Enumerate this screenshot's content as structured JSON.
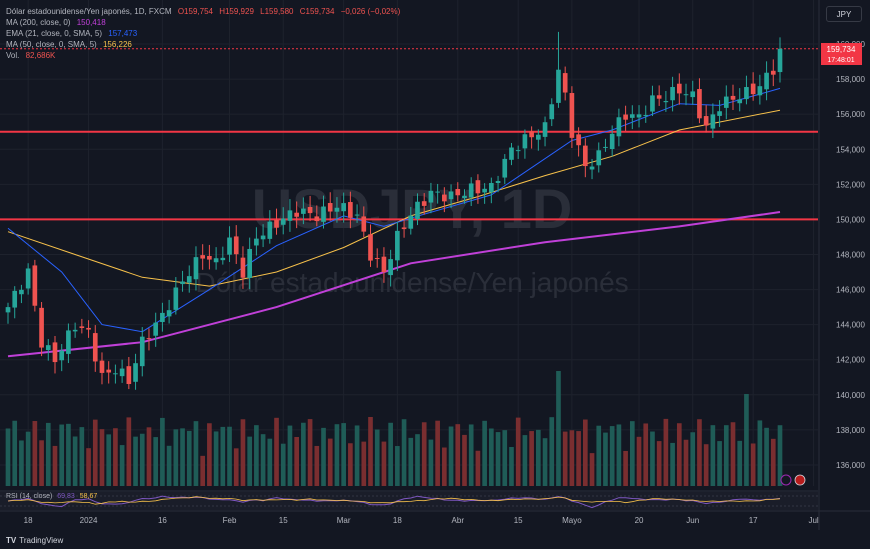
{
  "header": {
    "symbol_line": {
      "name": "Dólar estadounidense/Yen japonés, 1D, FXCM",
      "o": "O159,754",
      "h": "H159,929",
      "l": "L159,580",
      "c": "C159,734",
      "chg": "−0,026 (−0,02%)"
    },
    "indicators": [
      {
        "label": "MA (200, close, 0)",
        "value": "150,418",
        "color": "#c040d8"
      },
      {
        "label": "EMA (21, close, 0, SMA, 5)",
        "value": "157,473",
        "color": "#2962ff"
      },
      {
        "label": "MA (50, close, 0, SMA, 5)",
        "value": "156,226",
        "color": "#f7c14b"
      },
      {
        "label": "Vol.",
        "value": "82,686K",
        "color": "#ef5350"
      }
    ],
    "currency_button": "JPY"
  },
  "watermark": {
    "ticker": "USDJPY, 1D",
    "name": "Dólar estadounidense/Yen japonés"
  },
  "price_tag": {
    "price": "159,734",
    "countdown": "17:48:01"
  },
  "rsi_legend": {
    "label": "RSI (14, close)",
    "v1": "69,83",
    "v2": "58,67"
  },
  "brand": {
    "logo": "TV",
    "name": "TradingView"
  },
  "colors": {
    "up": "#26a69a",
    "down": "#ef5350",
    "hline": "#f23645",
    "ma200": "#c040d8",
    "ema21": "#2962ff",
    "ma50": "#f7c14b",
    "bg": "#131722",
    "grid": "#1e222d",
    "text": "#b2b5be"
  },
  "icons": {
    "alert": "circle-icon",
    "flag": "us-flag-icon"
  },
  "chart_data": {
    "type": "candlestick",
    "ylim": [
      134.8,
      160.8
    ],
    "y_ticks": [
      "160,000",
      "158,000",
      "156,000",
      "154,000",
      "152,000",
      "150,000",
      "148,000",
      "146,000",
      "144,000",
      "142,000",
      "140,000",
      "138,000",
      "136,000"
    ],
    "y_tick_values": [
      160,
      158,
      156,
      154,
      152,
      150,
      148,
      146,
      144,
      142,
      140,
      138,
      136
    ],
    "x_ticks": [
      "18",
      "2024",
      "16",
      "Feb",
      "15",
      "Mar",
      "18",
      "Abr",
      "15",
      "Mayo",
      "20",
      "Jun",
      "17",
      "Jul"
    ],
    "horizontal_lines": [
      155.0,
      150.0
    ],
    "anchors": [
      [
        0,
        145.0
      ],
      [
        3,
        147.0
      ],
      [
        5,
        143.0
      ],
      [
        7,
        142.0
      ],
      [
        10,
        144.0
      ],
      [
        12,
        143.5
      ],
      [
        14,
        141.0
      ],
      [
        16,
        141.5
      ],
      [
        18,
        140.8
      ],
      [
        20,
        143.0
      ],
      [
        23,
        144.5
      ],
      [
        26,
        146.5
      ],
      [
        29,
        148.0
      ],
      [
        31,
        147.5
      ],
      [
        33,
        148.8
      ],
      [
        35,
        147.0
      ],
      [
        37,
        149.0
      ],
      [
        40,
        149.8
      ],
      [
        43,
        150.5
      ],
      [
        46,
        150.2
      ],
      [
        49,
        150.8
      ],
      [
        52,
        150.2
      ],
      [
        54,
        148.0
      ],
      [
        56,
        147.0
      ],
      [
        58,
        149.0
      ],
      [
        60,
        150.3
      ],
      [
        63,
        151.5
      ],
      [
        66,
        151.3
      ],
      [
        69,
        151.7
      ],
      [
        72,
        151.8
      ],
      [
        75,
        154.0
      ],
      [
        78,
        154.8
      ],
      [
        80,
        155.2
      ],
      [
        82,
        158.5
      ],
      [
        83,
        157.0
      ],
      [
        84,
        155.0
      ],
      [
        86,
        153.0
      ],
      [
        88,
        153.6
      ],
      [
        90,
        155.0
      ],
      [
        92,
        156.0
      ],
      [
        94,
        155.8
      ],
      [
        96,
        156.8
      ],
      [
        98,
        157.0
      ],
      [
        100,
        157.4
      ],
      [
        102,
        157.0
      ],
      [
        104,
        155.2
      ],
      [
        106,
        156.5
      ],
      [
        108,
        156.9
      ],
      [
        110,
        157.2
      ],
      [
        112,
        157.6
      ],
      [
        114,
        158.6
      ],
      [
        115,
        159.73
      ]
    ],
    "ma200": [
      [
        0,
        142.2
      ],
      [
        20,
        143.0
      ],
      [
        40,
        145.0
      ],
      [
        60,
        147.5
      ],
      [
        80,
        148.7
      ],
      [
        100,
        149.6
      ],
      [
        115,
        150.42
      ]
    ],
    "ema21": [
      [
        0,
        149.5
      ],
      [
        8,
        147.0
      ],
      [
        14,
        144.0
      ],
      [
        20,
        143.6
      ],
      [
        30,
        146.0
      ],
      [
        40,
        148.5
      ],
      [
        50,
        150.2
      ],
      [
        56,
        149.6
      ],
      [
        62,
        150.3
      ],
      [
        72,
        151.4
      ],
      [
        84,
        154.5
      ],
      [
        90,
        155.1
      ],
      [
        100,
        156.6
      ],
      [
        106,
        156.5
      ],
      [
        115,
        157.47
      ]
    ],
    "ma50": [
      [
        0,
        149.3
      ],
      [
        10,
        148.0
      ],
      [
        20,
        146.7
      ],
      [
        30,
        146.2
      ],
      [
        40,
        147.0
      ],
      [
        50,
        148.4
      ],
      [
        60,
        150.2
      ],
      [
        70,
        151.3
      ],
      [
        80,
        152.5
      ],
      [
        90,
        153.6
      ],
      [
        100,
        155.1
      ],
      [
        115,
        156.23
      ]
    ],
    "volume_peaks": [
      [
        82,
        1.0
      ],
      [
        110,
        0.8
      ],
      [
        44,
        0.55
      ],
      [
        54,
        0.6
      ],
      [
        0,
        0.5
      ]
    ],
    "rsi": {
      "v1": 69.83,
      "v2": 58.67
    }
  }
}
